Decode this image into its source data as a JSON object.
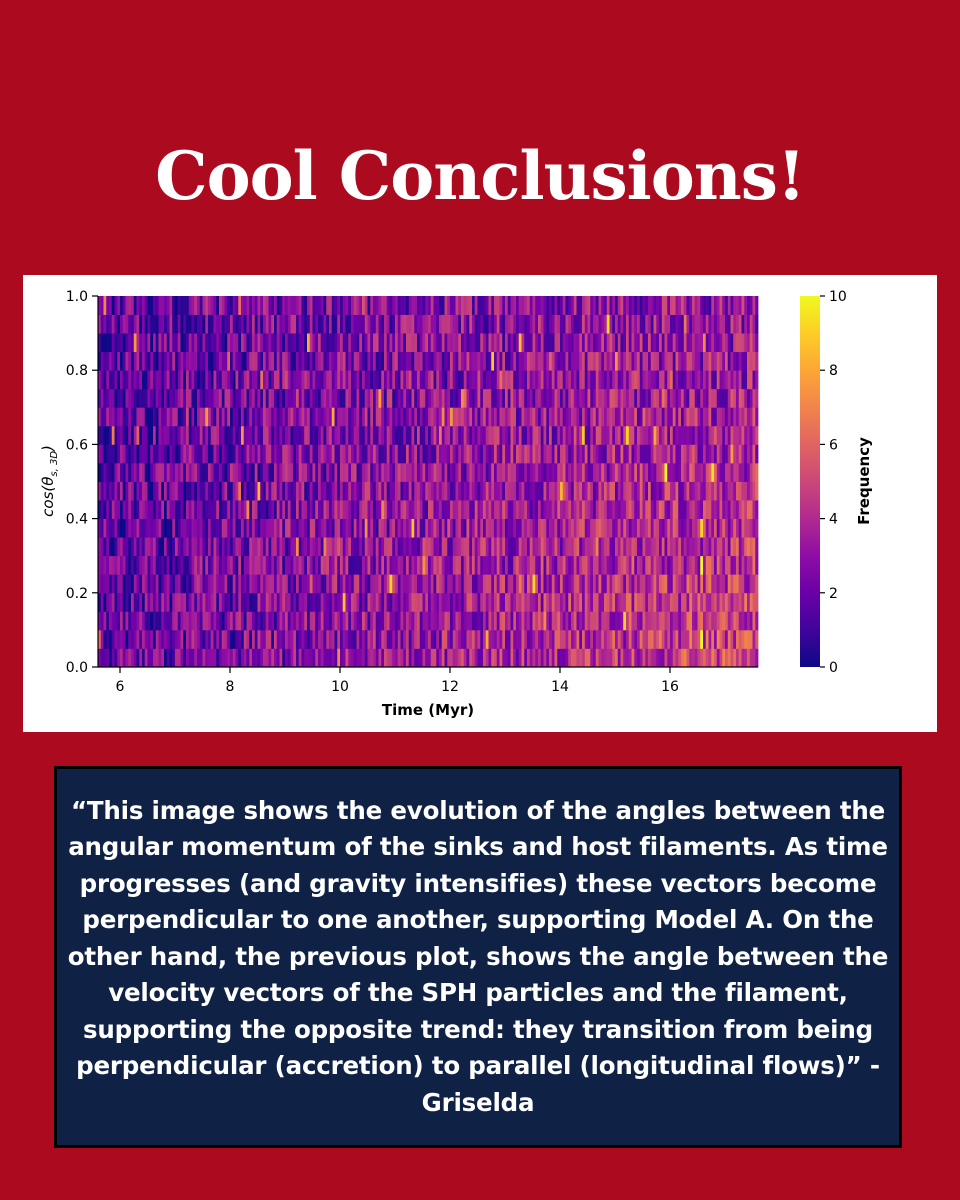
{
  "page": {
    "title": "Cool Conclusions!",
    "quote": "“This image shows the evolution of the angles between the angular momentum of the sinks and host filaments. As time progresses (and gravity intensifies) these vectors become perpendicular to one another,  supporting Model A. On the other hand, the previous plot, shows the angle between the velocity vectors of the SPH particles and the filament, supporting the opposite trend: they transition from being perpendicular (accretion) to parallel (longitudinal flows)” - Griselda"
  },
  "colors": {
    "background": "#ac0a1e",
    "quote_box": "#0f2145",
    "card": "#ffffff"
  },
  "chart_data": {
    "type": "heatmap",
    "colormap": "plasma",
    "xlabel": "Time (Myr)",
    "ylabel": "cos(θs, 3D)",
    "ylabel_parts": {
      "base": "cos(θ",
      "sub": "s, 3D",
      "end": ")"
    },
    "xlim": [
      5.6,
      17.6
    ],
    "ylim": [
      0.0,
      1.0
    ],
    "x_ticks": [
      "6",
      "8",
      "10",
      "12",
      "14",
      "16"
    ],
    "x_tick_values": [
      6,
      8,
      10,
      12,
      14,
      16
    ],
    "y_ticks": [
      "0.0",
      "0.2",
      "0.4",
      "0.6",
      "0.8",
      "1.0"
    ],
    "y_tick_values": [
      0.0,
      0.2,
      0.4,
      0.6,
      0.8,
      1.0
    ],
    "colorbar": {
      "label": "Frequency",
      "range": [
        0,
        10
      ],
      "ticks": [
        "0",
        "2",
        "4",
        "6",
        "8",
        "10"
      ],
      "tick_values": [
        0,
        2,
        4,
        6,
        8,
        10
      ]
    },
    "n_time_bins": 240,
    "n_angle_bins": 20,
    "mean_frequency_trend": {
      "note": "frequency rises with time, concentrated at low cos values late",
      "early_mean": 1.5,
      "late_mean": 4.5
    }
  }
}
